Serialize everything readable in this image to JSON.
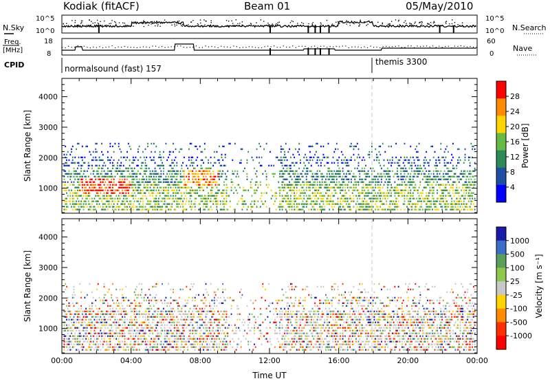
{
  "header": {
    "station": "Kodiak (fitACF)",
    "beam": "Beam 01",
    "date": "05/May/2010"
  },
  "sidepanel": {
    "nsky_label": "N.Sky",
    "nsearch_label": "N.Search",
    "freq_label_1": "Freq.",
    "freq_label_2": "[MHz]",
    "nave_label": "Nave",
    "cpid_label": "CPID",
    "nsky_ticks": [
      "10^5",
      "10^0"
    ],
    "nsearch_ticks": [
      "10^5",
      "10^0"
    ],
    "freq_ticks": [
      "18",
      "8"
    ],
    "nave_ticks": [
      "60",
      "0"
    ]
  },
  "cpid": {
    "segments": [
      {
        "label": "normalsound (fast) 157",
        "start_hour": 0
      },
      {
        "label": "themis 3300",
        "start_hour": 18
      }
    ]
  },
  "colors": {
    "power": [
      "#0000ff",
      "#1f4fa0",
      "#2e8b57",
      "#66bb44",
      "#ffd400",
      "#ff8c00",
      "#ff0000"
    ],
    "velocity": [
      "#1a1aa8",
      "#3a6ec8",
      "#5aa05a",
      "#8cc84a",
      "#c8c8c8",
      "#ffd400",
      "#ff8c00",
      "#ff3000",
      "#ff0000"
    ]
  },
  "chart_data": [
    {
      "type": "heatmap",
      "name": "power",
      "ylabel": "Slant Range [km]",
      "ylim": [
        180,
        4600
      ],
      "yticks": [
        "1000",
        "2000",
        "3000",
        "4000"
      ],
      "xlim": [
        0,
        24
      ],
      "colorbar": {
        "label": "Power [dB]",
        "ticks": [
          "4",
          "8",
          "12",
          "16",
          "20",
          "24",
          "28"
        ],
        "range": [
          0,
          32
        ]
      }
    },
    {
      "type": "heatmap",
      "name": "velocity",
      "ylabel": "Slant Range [km]",
      "xlabel": "Time UT",
      "ylim": [
        180,
        4600
      ],
      "yticks": [
        "1000",
        "2000",
        "3000",
        "4000"
      ],
      "xlim": [
        0,
        24
      ],
      "xticks": [
        "00:00",
        "04:00",
        "08:00",
        "12:00",
        "16:00",
        "20:00",
        "00:00"
      ],
      "colorbar": {
        "label": "Velocity [m s⁻¹]",
        "ticks": [
          "1000",
          "500",
          "100",
          "25",
          "-25",
          "-100",
          "-500",
          "-1000"
        ]
      }
    }
  ]
}
